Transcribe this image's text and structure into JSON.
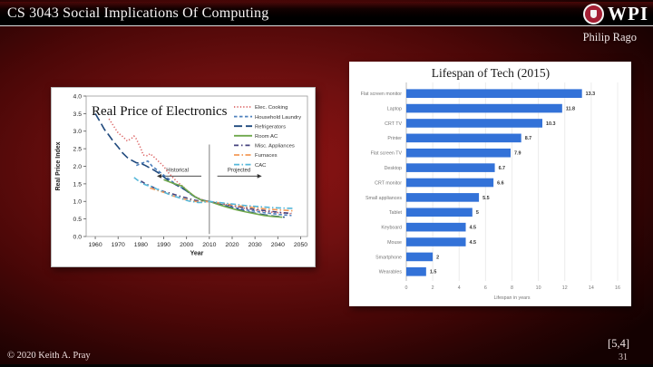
{
  "slide": {
    "title": "CS 3043 Social Implications Of Computing",
    "author": "Philip Rago",
    "logo_text": "WPI",
    "citation": "[5,4]",
    "footer_copyright": "© 2020 Keith A. Pray",
    "page_number": "31",
    "colors": {
      "crimson": "#a31f34",
      "background_red": "#701010"
    }
  },
  "chart_data": [
    {
      "type": "line",
      "title": "Real Price of Electronics",
      "xlabel": "Year",
      "ylabel": "Real Price Index",
      "xlim": [
        1956,
        2053
      ],
      "ylim": [
        0,
        4
      ],
      "xticks": [
        1960,
        1970,
        1980,
        1990,
        2000,
        2010,
        2020,
        2030,
        2040,
        2050
      ],
      "yticks": [
        0,
        0.5,
        1,
        1.5,
        2,
        2.5,
        3,
        3.5,
        4
      ],
      "grid": false,
      "legend_position": "upper right",
      "annotations": {
        "historical_label": "Historical",
        "projected_label": "Projected",
        "divider_x": 2010
      },
      "series": [
        {
          "name": "Elec. Cooking",
          "color": "#dd6b6b",
          "dash": "1.3 2.1",
          "x": [
            1966,
            1968,
            1970,
            1972,
            1974,
            1976,
            1977,
            1978,
            1980,
            1981,
            1983,
            1984,
            1986,
            1988,
            1990,
            1992,
            1994,
            1996,
            1998,
            2000,
            2002,
            2004,
            2006,
            2008,
            2010,
            2014,
            2018,
            2022,
            2026,
            2030,
            2034,
            2038,
            2042,
            2046
          ],
          "y": [
            3.35,
            3.15,
            2.95,
            2.85,
            2.72,
            2.8,
            2.86,
            2.78,
            2.5,
            2.32,
            2.3,
            2.36,
            2.25,
            2.12,
            2.0,
            1.82,
            1.68,
            1.55,
            1.45,
            1.33,
            1.22,
            1.13,
            1.07,
            1.02,
            1.0,
            0.95,
            0.9,
            0.85,
            0.8,
            0.76,
            0.72,
            0.69,
            0.67,
            0.65
          ]
        },
        {
          "name": "Household Laundry",
          "color": "#4f81bd",
          "dash": "3.5 2.5",
          "x": [
            1978,
            1980,
            1982,
            1983,
            1985,
            1987,
            1989,
            1991,
            1993,
            1995,
            1997,
            1999,
            2001,
            2003,
            2005,
            2007,
            2010,
            2014,
            2018,
            2022,
            2026,
            2030,
            2034,
            2038,
            2042,
            2046
          ],
          "y": [
            2.02,
            2.08,
            2.12,
            2.15,
            2.0,
            1.9,
            1.8,
            1.7,
            1.6,
            1.5,
            1.42,
            1.35,
            1.25,
            1.15,
            1.08,
            1.03,
            1.0,
            0.93,
            0.87,
            0.81,
            0.76,
            0.72,
            0.68,
            0.65,
            0.62,
            0.6
          ]
        },
        {
          "name": "Refrigerators",
          "color": "#1f497d",
          "dash": "9 4",
          "x": [
            1960,
            1962,
            1964,
            1966,
            1968,
            1970,
            1972,
            1974,
            1976,
            1978,
            1980,
            1982,
            1984,
            1986,
            1988,
            1990,
            1992,
            1994,
            1996,
            1998,
            2000,
            2002,
            2004,
            2006,
            2008,
            2010,
            2013,
            2016,
            2019,
            2022,
            2025,
            2028,
            2031,
            2034,
            2037,
            2040,
            2043
          ],
          "y": [
            3.5,
            3.28,
            3.05,
            2.88,
            2.7,
            2.55,
            2.38,
            2.25,
            2.17,
            2.1,
            2.08,
            2.02,
            1.95,
            1.88,
            1.8,
            1.7,
            1.6,
            1.52,
            1.45,
            1.38,
            1.3,
            1.2,
            1.12,
            1.06,
            1.02,
            1.0,
            0.95,
            0.89,
            0.83,
            0.78,
            0.73,
            0.69,
            0.65,
            0.62,
            0.59,
            0.57,
            0.55
          ]
        },
        {
          "name": "Room AC",
          "color": "#6fa84c",
          "dash": "",
          "x": [
            1990,
            1992,
            1994,
            1996,
            1998,
            2000,
            2002,
            2004,
            2006,
            2008,
            2010,
            2014,
            2018,
            2022,
            2026,
            2030,
            2034,
            2038,
            2042
          ],
          "y": [
            1.62,
            1.57,
            1.52,
            1.48,
            1.44,
            1.32,
            1.22,
            1.12,
            1.05,
            1.01,
            1.0,
            0.91,
            0.83,
            0.76,
            0.7,
            0.65,
            0.6,
            0.57,
            0.55
          ]
        },
        {
          "name": "Misc. Appliances",
          "color": "#44427e",
          "dash": "5 3 1.5 3",
          "x": [
            1980,
            1982,
            1984,
            1986,
            1988,
            1990,
            1992,
            1994,
            1996,
            1998,
            2000,
            2002,
            2004,
            2006,
            2008,
            2010,
            2014,
            2018,
            2022,
            2026,
            2030,
            2034,
            2038,
            2042,
            2046
          ],
          "y": [
            1.58,
            1.5,
            1.44,
            1.38,
            1.33,
            1.28,
            1.25,
            1.21,
            1.17,
            1.13,
            1.1,
            1.06,
            1.03,
            1.01,
            1.0,
            1.0,
            0.95,
            0.9,
            0.86,
            0.81,
            0.77,
            0.74,
            0.71,
            0.68,
            0.66
          ]
        },
        {
          "name": "Furnaces",
          "color": "#f49a57",
          "dash": "6 2.5 1.5 2.5",
          "x": [
            1984,
            1986,
            1988,
            1990,
            1992,
            1994,
            1996,
            1998,
            2000,
            2002,
            2004,
            2006,
            2008,
            2010,
            2014,
            2018,
            2022,
            2026,
            2030,
            2034,
            2038,
            2042,
            2047
          ],
          "y": [
            1.38,
            1.34,
            1.3,
            1.26,
            1.22,
            1.16,
            1.12,
            1.08,
            1.05,
            1.02,
            1.0,
            0.99,
            0.99,
            1.0,
            0.96,
            0.92,
            0.88,
            0.85,
            0.82,
            0.79,
            0.77,
            0.75,
            0.73
          ]
        },
        {
          "name": "CAC",
          "color": "#55b7d9",
          "dash": "6 2.5 1.5 2.5",
          "x": [
            1977,
            1979,
            1981,
            1983,
            1985,
            1987,
            1989,
            1991,
            1993,
            1995,
            1997,
            1999,
            2001,
            2003,
            2005,
            2007,
            2010,
            2014,
            2018,
            2022,
            2026,
            2030,
            2034,
            2038,
            2042,
            2047
          ],
          "y": [
            1.68,
            1.58,
            1.5,
            1.45,
            1.42,
            1.35,
            1.3,
            1.24,
            1.18,
            1.14,
            1.1,
            1.05,
            1.01,
            0.99,
            0.97,
            0.97,
            1.0,
            0.97,
            0.94,
            0.91,
            0.88,
            0.86,
            0.84,
            0.82,
            0.81,
            0.8
          ]
        }
      ]
    },
    {
      "type": "bar",
      "title": "Lifespan of Tech (2015)",
      "orientation": "horizontal",
      "categories": [
        "Flat screen monitor",
        "Laptop",
        "CRT TV",
        "Printer",
        "Flat screen TV",
        "Desktop",
        "CRT monitor",
        "Small appliances",
        "Tablet",
        "Keyboard",
        "Mouse",
        "Smartphone",
        "Wearables"
      ],
      "values": [
        13.3,
        11.8,
        10.3,
        8.7,
        7.9,
        6.7,
        6.6,
        5.5,
        5,
        4.5,
        4.5,
        2,
        1.5
      ],
      "value_labels": [
        "13.3",
        "11.8",
        "10.3",
        "8.7",
        "7.9",
        "6.7",
        "6.6",
        "5.5",
        "5",
        "4.5",
        "4.5",
        "2",
        "1.5"
      ],
      "xlabel": "Lifespan in years",
      "xlim": [
        0,
        16
      ],
      "xticks": [
        0,
        2,
        4,
        6,
        8,
        10,
        12,
        14,
        16
      ],
      "grid": true,
      "bar_color": "#3372d8"
    }
  ]
}
